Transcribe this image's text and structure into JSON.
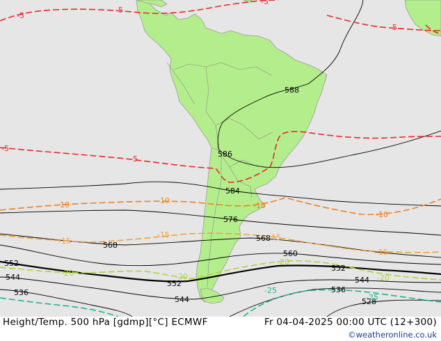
{
  "footer": {
    "title": "Height/Temp. 500 hPa [gdmp][°C] ECMWF",
    "datetime": "Fr 04-04-2025 00:00 UTC (12+300)",
    "credit": "©weatheronline.co.uk"
  },
  "colors": {
    "ocean": "#e6e6e6",
    "land": "#b4ee8c",
    "height_contour": "#000000",
    "temp_minus5": "#e8282d",
    "temp_minus10": "#f07f1e",
    "temp_minus15": "#f0a03c",
    "temp_minus20": "#a8d63c",
    "temp_minus25": "#1eb48c"
  },
  "height_labels": [
    "588",
    "586",
    "584",
    "576",
    "568",
    "568",
    "560",
    "552",
    "552",
    "552",
    "544",
    "544",
    "544",
    "536",
    "536",
    "528"
  ],
  "temp_labels": [
    "-5",
    "-5",
    "-5",
    "-5",
    "-5",
    "-5",
    "-10",
    "-10",
    "-10",
    "-10",
    "-15",
    "-15",
    "-15",
    "-15",
    "-20",
    "-20",
    "-20",
    "-20",
    "-25",
    "-25"
  ]
}
